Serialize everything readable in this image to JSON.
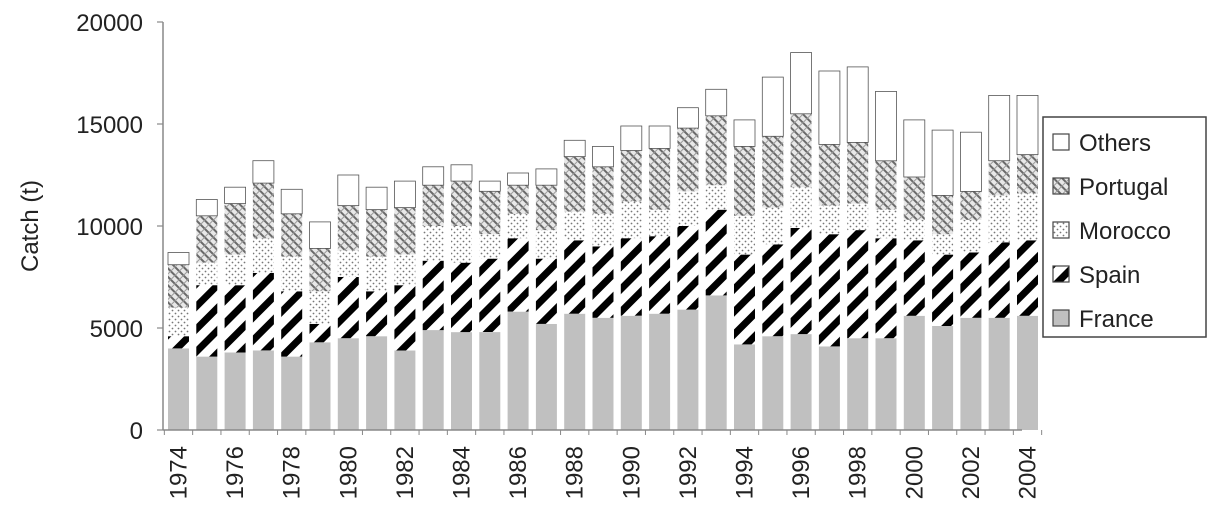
{
  "chart_data": {
    "type": "bar",
    "stacked": true,
    "title": "",
    "xlabel": "",
    "ylabel": "Catch (t)",
    "ylim": [
      0,
      20000
    ],
    "yticks": [
      0,
      5000,
      10000,
      15000,
      20000
    ],
    "grid": false,
    "legend_position": "right",
    "categories": [
      "1974",
      "1975",
      "1976",
      "1977",
      "1978",
      "1979",
      "1980",
      "1981",
      "1982",
      "1983",
      "1984",
      "1985",
      "1986",
      "1987",
      "1988",
      "1989",
      "1990",
      "1991",
      "1992",
      "1993",
      "1994",
      "1995",
      "1996",
      "1997",
      "1998",
      "1999",
      "2000",
      "2001",
      "2002",
      "2003",
      "2004"
    ],
    "x_tick_labels": [
      "1974",
      "1976",
      "1978",
      "1980",
      "1982",
      "1984",
      "1986",
      "1988",
      "1990",
      "1992",
      "1994",
      "1996",
      "1998",
      "2000",
      "2002",
      "2004"
    ],
    "series": [
      {
        "name": "France",
        "pattern": "solid-gray",
        "values": [
          4000,
          3600,
          3800,
          3900,
          3600,
          4300,
          4500,
          4600,
          3900,
          4900,
          4800,
          4800,
          5800,
          5200,
          5700,
          5500,
          5600,
          5700,
          5900,
          6600,
          4200,
          4600,
          4700,
          4100,
          4500,
          4500,
          5600,
          5100,
          5500,
          5500,
          5600
        ]
      },
      {
        "name": "Spain",
        "pattern": "black-diagonal",
        "values": [
          600,
          3500,
          3300,
          3800,
          3200,
          900,
          3000,
          2200,
          3200,
          3400,
          3400,
          3600,
          3600,
          3200,
          3600,
          3500,
          3800,
          3800,
          4100,
          4200,
          4400,
          4500,
          5200,
          5500,
          5300,
          4900,
          3700,
          3500,
          3200,
          3700,
          3700
        ]
      },
      {
        "name": "Morocco",
        "pattern": "dotted",
        "values": [
          1400,
          1100,
          1500,
          1700,
          1700,
          1600,
          1300,
          1700,
          1500,
          1700,
          1800,
          1200,
          1200,
          1400,
          1400,
          1600,
          1800,
          1300,
          1700,
          1200,
          1900,
          1800,
          2000,
          1400,
          1300,
          1400,
          1000,
          1000,
          1600,
          2300,
          2300
        ]
      },
      {
        "name": "Portugal",
        "pattern": "cross-hatch",
        "values": [
          2100,
          2300,
          2500,
          2700,
          2100,
          2100,
          2200,
          2300,
          2300,
          2000,
          2200,
          2100,
          1400,
          2200,
          2700,
          2300,
          2500,
          3000,
          3100,
          3400,
          3400,
          3500,
          3600,
          3000,
          3000,
          2400,
          2100,
          1900,
          1400,
          1700,
          1900
        ]
      },
      {
        "name": "Others",
        "pattern": "white",
        "values": [
          600,
          800,
          800,
          1100,
          1200,
          1300,
          1500,
          1100,
          1300,
          900,
          800,
          500,
          600,
          800,
          800,
          1000,
          1200,
          1100,
          1000,
          1300,
          1300,
          2900,
          3000,
          3600,
          3700,
          3400,
          2800,
          3200,
          2900,
          3200,
          2900
        ]
      }
    ],
    "legend": [
      {
        "name": "Others",
        "pattern": "white"
      },
      {
        "name": "Portugal",
        "pattern": "cross-hatch"
      },
      {
        "name": "Morocco",
        "pattern": "dotted"
      },
      {
        "name": "Spain",
        "pattern": "black-diagonal"
      },
      {
        "name": "France",
        "pattern": "solid-gray"
      }
    ],
    "colors": {
      "bar_stroke": "#555555",
      "france_fill": "#c0c0c0",
      "axis": "#888888"
    }
  }
}
